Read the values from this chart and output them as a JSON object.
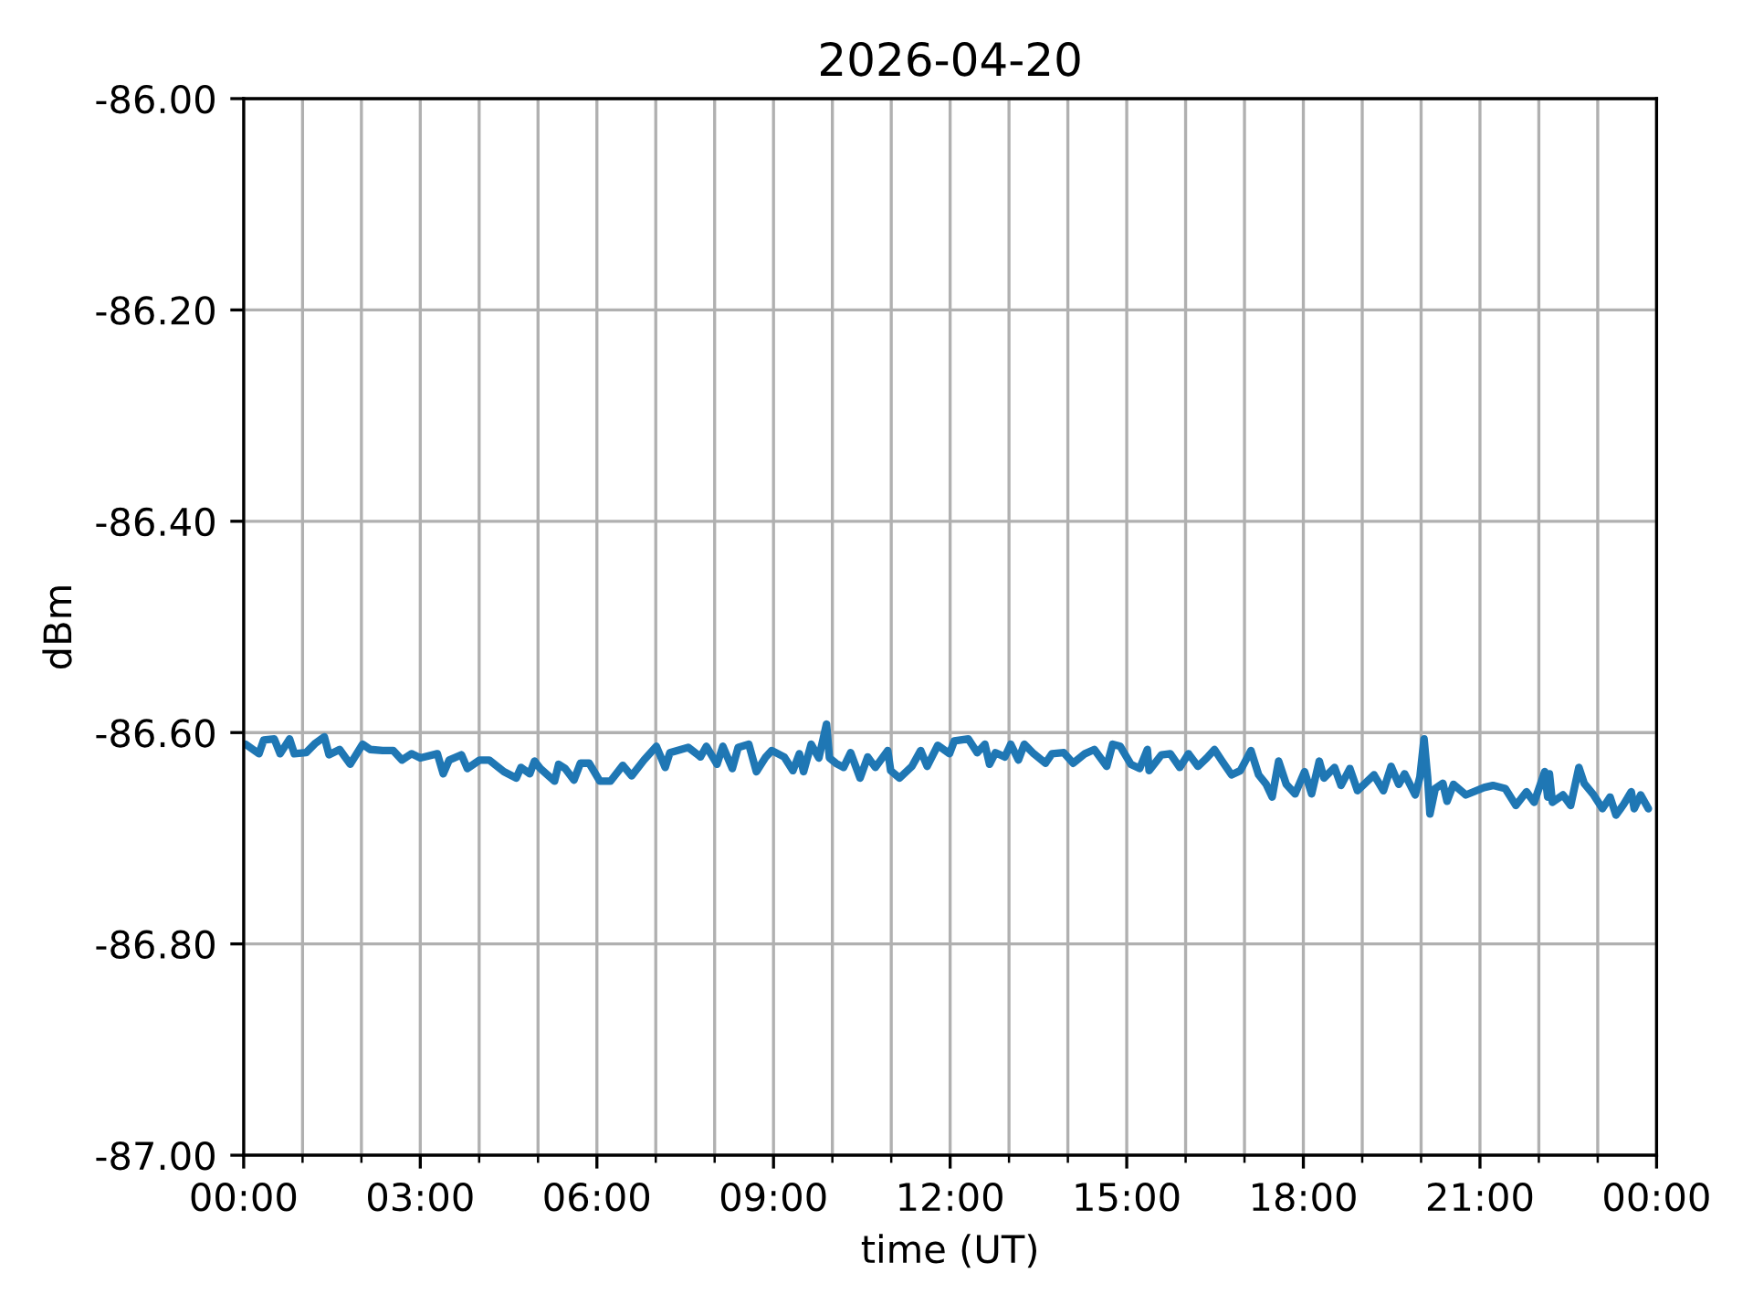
{
  "chart_data": {
    "type": "line",
    "title": "2026-04-20",
    "xlabel": "time (UT)",
    "ylabel": "dBm",
    "xlim": [
      0,
      24
    ],
    "ylim": [
      -87.0,
      -86.0
    ],
    "xticks": [
      {
        "value": 0,
        "label": "00:00"
      },
      {
        "value": 1,
        "label": null
      },
      {
        "value": 2,
        "label": null
      },
      {
        "value": 3,
        "label": "03:00"
      },
      {
        "value": 4,
        "label": null
      },
      {
        "value": 5,
        "label": null
      },
      {
        "value": 6,
        "label": "06:00"
      },
      {
        "value": 7,
        "label": null
      },
      {
        "value": 8,
        "label": null
      },
      {
        "value": 9,
        "label": "09:00"
      },
      {
        "value": 10,
        "label": null
      },
      {
        "value": 11,
        "label": null
      },
      {
        "value": 12,
        "label": "12:00"
      },
      {
        "value": 13,
        "label": null
      },
      {
        "value": 14,
        "label": null
      },
      {
        "value": 15,
        "label": "15:00"
      },
      {
        "value": 16,
        "label": null
      },
      {
        "value": 17,
        "label": null
      },
      {
        "value": 18,
        "label": "18:00"
      },
      {
        "value": 19,
        "label": null
      },
      {
        "value": 20,
        "label": null
      },
      {
        "value": 21,
        "label": "21:00"
      },
      {
        "value": 22,
        "label": null
      },
      {
        "value": 23,
        "label": null
      },
      {
        "value": 24,
        "label": "00:00"
      }
    ],
    "yticks": [
      {
        "value": -87.0,
        "label": "-87.00"
      },
      {
        "value": -86.8,
        "label": "-86.80"
      },
      {
        "value": -86.6,
        "label": "-86.60"
      },
      {
        "value": -86.4,
        "label": "-86.40"
      },
      {
        "value": -86.2,
        "label": "-86.20"
      },
      {
        "value": -86.0,
        "label": "-86.00"
      }
    ],
    "grid": true,
    "x": [
      0.03,
      0.26,
      0.34,
      0.52,
      0.62,
      0.78,
      0.86,
      1.06,
      1.22,
      1.37,
      1.45,
      1.63,
      1.81,
      2.02,
      2.15,
      2.36,
      2.54,
      2.69,
      2.85,
      3.0,
      3.29,
      3.39,
      3.49,
      3.7,
      3.8,
      4.01,
      4.17,
      4.42,
      4.63,
      4.71,
      4.86,
      4.94,
      5.04,
      5.28,
      5.35,
      5.46,
      5.61,
      5.72,
      5.87,
      6.05,
      6.23,
      6.44,
      6.59,
      6.8,
      7.01,
      7.16,
      7.24,
      7.55,
      7.76,
      7.86,
      8.04,
      8.14,
      8.3,
      8.4,
      8.58,
      8.71,
      8.87,
      8.97,
      9.18,
      9.33,
      9.44,
      9.51,
      9.64,
      9.77,
      9.9,
      9.95,
      10.06,
      10.19,
      10.31,
      10.47,
      10.6,
      10.73,
      10.94,
      10.99,
      11.14,
      11.35,
      11.5,
      11.61,
      11.79,
      11.99,
      12.07,
      12.31,
      12.46,
      12.59,
      12.67,
      12.77,
      12.93,
      13.03,
      13.16,
      13.26,
      13.42,
      13.62,
      13.73,
      13.93,
      14.09,
      14.29,
      14.45,
      14.66,
      14.76,
      14.89,
      15.07,
      15.22,
      15.35,
      15.38,
      15.59,
      15.74,
      15.9,
      16.05,
      16.21,
      16.36,
      16.49,
      16.62,
      16.78,
      16.93,
      17.11,
      17.24,
      17.37,
      17.47,
      17.58,
      17.71,
      17.86,
      18.02,
      18.14,
      18.27,
      18.35,
      18.53,
      18.64,
      18.79,
      18.92,
      19.2,
      19.36,
      19.49,
      19.62,
      19.72,
      19.9,
      19.98,
      20.05,
      20.11,
      20.15,
      20.24,
      20.37,
      20.44,
      20.55,
      20.76,
      21.07,
      21.22,
      21.43,
      21.61,
      21.79,
      21.92,
      22.1,
      22.15,
      22.18,
      22.23,
      22.41,
      22.54,
      22.68,
      22.77,
      22.93,
      23.08,
      23.21,
      23.31,
      23.44,
      23.57,
      23.62,
      23.73,
      23.86
    ],
    "series": [
      {
        "color": "#1f77b4",
        "values": [
          -86.611,
          -86.62,
          -86.607,
          -86.606,
          -86.62,
          -86.606,
          -86.62,
          -86.619,
          -86.61,
          -86.604,
          -86.621,
          -86.616,
          -86.63,
          -86.611,
          -86.616,
          -86.617,
          -86.617,
          -86.626,
          -86.62,
          -86.624,
          -86.62,
          -86.639,
          -86.626,
          -86.621,
          -86.634,
          -86.626,
          -86.626,
          -86.637,
          -86.643,
          -86.633,
          -86.639,
          -86.627,
          -86.634,
          -86.646,
          -86.63,
          -86.634,
          -86.645,
          -86.629,
          -86.629,
          -86.646,
          -86.646,
          -86.631,
          -86.641,
          -86.626,
          -86.613,
          -86.633,
          -86.619,
          -86.614,
          -86.623,
          -86.613,
          -86.63,
          -86.613,
          -86.634,
          -86.614,
          -86.611,
          -86.637,
          -86.623,
          -86.617,
          -86.623,
          -86.636,
          -86.62,
          -86.637,
          -86.611,
          -86.624,
          -86.592,
          -86.624,
          -86.629,
          -86.633,
          -86.619,
          -86.643,
          -86.623,
          -86.633,
          -86.617,
          -86.636,
          -86.643,
          -86.632,
          -86.617,
          -86.632,
          -86.612,
          -86.62,
          -86.608,
          -86.606,
          -86.619,
          -86.611,
          -86.63,
          -86.619,
          -86.623,
          -86.611,
          -86.626,
          -86.611,
          -86.62,
          -86.629,
          -86.62,
          -86.619,
          -86.629,
          -86.62,
          -86.616,
          -86.632,
          -86.611,
          -86.613,
          -86.63,
          -86.634,
          -86.616,
          -86.636,
          -86.621,
          -86.62,
          -86.633,
          -86.62,
          -86.632,
          -86.624,
          -86.616,
          -86.627,
          -86.64,
          -86.636,
          -86.617,
          -86.64,
          -86.649,
          -86.661,
          -86.627,
          -86.649,
          -86.658,
          -86.637,
          -86.658,
          -86.627,
          -86.643,
          -86.633,
          -86.65,
          -86.634,
          -86.655,
          -86.64,
          -86.655,
          -86.632,
          -86.649,
          -86.639,
          -86.659,
          -86.642,
          -86.606,
          -86.642,
          -86.677,
          -86.653,
          -86.648,
          -86.665,
          -86.649,
          -86.659,
          -86.652,
          -86.65,
          -86.653,
          -86.669,
          -86.656,
          -86.666,
          -86.637,
          -86.661,
          -86.639,
          -86.666,
          -86.659,
          -86.669,
          -86.633,
          -86.648,
          -86.659,
          -86.672,
          -86.661,
          -86.678,
          -86.668,
          -86.656,
          -86.672,
          -86.659,
          -86.672
        ]
      }
    ]
  }
}
